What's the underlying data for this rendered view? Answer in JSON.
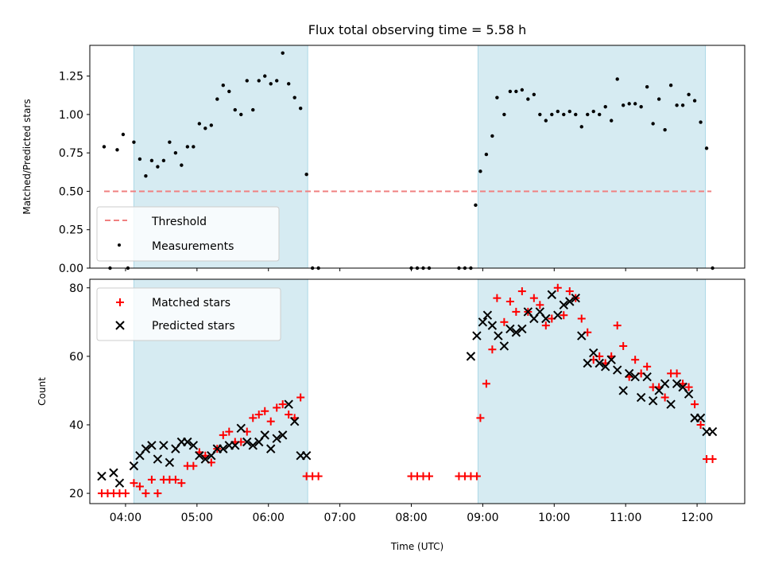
{
  "figure": {
    "title": "Flux total observing time = 5.58 h"
  },
  "chart_data": [
    {
      "type": "scatter",
      "ylabel": "Matched/Predicted stars",
      "ylim": [
        0,
        1.45
      ],
      "yticks": [
        0.0,
        0.25,
        0.5,
        0.75,
        1.0,
        1.25
      ],
      "ytick_labels": [
        "0.00",
        "0.25",
        "0.50",
        "0.75",
        "1.00",
        "1.25"
      ],
      "xlim": [
        "03:30",
        "12:40"
      ],
      "shaded_intervals": [
        [
          "04:07",
          "06:33"
        ],
        [
          "08:56",
          "12:07"
        ]
      ],
      "threshold": {
        "name": "Threshold",
        "value": 0.5,
        "x_range": [
          "03:42",
          "12:12"
        ]
      },
      "legend": {
        "position": "lower-left",
        "entries": [
          "Threshold",
          "Measurements"
        ]
      },
      "series": [
        {
          "name": "Measurements",
          "color": "#000000",
          "x": [
            "03:42",
            "03:47",
            "03:53",
            "03:58",
            "04:02",
            "04:07",
            "04:12",
            "04:17",
            "04:22",
            "04:27",
            "04:32",
            "04:37",
            "04:42",
            "04:47",
            "04:52",
            "04:57",
            "05:02",
            "05:07",
            "05:12",
            "05:17",
            "05:22",
            "05:27",
            "05:32",
            "05:37",
            "05:42",
            "05:47",
            "05:52",
            "05:57",
            "06:02",
            "06:07",
            "06:12",
            "06:17",
            "06:22",
            "06:27",
            "06:32",
            "06:37",
            "06:42",
            "08:00",
            "08:05",
            "08:10",
            "08:15",
            "08:40",
            "08:45",
            "08:50",
            "08:54",
            "08:58",
            "09:03",
            "09:08",
            "09:12",
            "09:18",
            "09:23",
            "09:28",
            "09:33",
            "09:38",
            "09:43",
            "09:48",
            "09:53",
            "09:58",
            "10:03",
            "10:08",
            "10:13",
            "10:18",
            "10:23",
            "10:28",
            "10:33",
            "10:38",
            "10:43",
            "10:48",
            "10:53",
            "10:58",
            "11:03",
            "11:08",
            "11:13",
            "11:18",
            "11:23",
            "11:28",
            "11:33",
            "11:38",
            "11:43",
            "11:48",
            "11:53",
            "11:58",
            "12:03",
            "12:08",
            "12:13"
          ],
          "y": [
            0.79,
            0.0,
            0.77,
            0.87,
            0.0,
            0.82,
            0.71,
            0.6,
            0.7,
            0.66,
            0.7,
            0.82,
            0.75,
            0.67,
            0.79,
            0.79,
            0.94,
            0.91,
            0.93,
            1.1,
            1.19,
            1.15,
            1.03,
            1.0,
            1.22,
            1.03,
            1.22,
            1.25,
            1.2,
            1.22,
            1.4,
            1.2,
            1.11,
            1.04,
            0.61,
            0.0,
            0.0,
            0.0,
            0.0,
            0.0,
            0.0,
            0.0,
            0.0,
            0.0,
            0.41,
            0.63,
            0.74,
            0.86,
            1.11,
            1.0,
            1.15,
            1.15,
            1.16,
            1.1,
            1.13,
            1.0,
            0.96,
            1.0,
            1.02,
            1.0,
            1.02,
            1.0,
            0.92,
            1.0,
            1.02,
            1.0,
            1.05,
            0.96,
            1.23,
            1.06,
            1.07,
            1.07,
            1.05,
            1.18,
            0.94,
            1.1,
            0.9,
            1.19,
            1.06,
            1.06,
            1.13,
            1.09,
            0.95,
            0.78,
            0.0
          ]
        }
      ]
    },
    {
      "type": "scatter",
      "xlabel": "Time (UTC)",
      "ylabel": "Count",
      "ylim": [
        17,
        82.5
      ],
      "yticks": [
        20,
        40,
        60,
        80
      ],
      "ytick_labels": [
        "20",
        "40",
        "60",
        "80"
      ],
      "xlim": [
        "03:30",
        "12:40"
      ],
      "xticks": [
        "04:00",
        "05:00",
        "06:00",
        "07:00",
        "08:00",
        "09:00",
        "10:00",
        "11:00",
        "12:00"
      ],
      "xtick_labels": [
        "04:00",
        "05:00",
        "06:00",
        "07:00",
        "08:00",
        "09:00",
        "10:00",
        "11:00",
        "12:00"
      ],
      "shaded_intervals": [
        [
          "04:07",
          "06:33"
        ],
        [
          "08:56",
          "12:07"
        ]
      ],
      "legend": {
        "position": "top-left",
        "entries": [
          "Matched stars",
          "Predicted stars"
        ]
      },
      "series": [
        {
          "name": "Matched stars",
          "marker": "+",
          "color": "#ff0000",
          "x": [
            "03:40",
            "03:45",
            "03:50",
            "03:55",
            "04:00",
            "04:07",
            "04:12",
            "04:17",
            "04:22",
            "04:27",
            "04:32",
            "04:37",
            "04:42",
            "04:47",
            "04:52",
            "04:57",
            "05:02",
            "05:07",
            "05:12",
            "05:17",
            "05:22",
            "05:27",
            "05:32",
            "05:37",
            "05:42",
            "05:47",
            "05:52",
            "05:57",
            "06:02",
            "06:07",
            "06:12",
            "06:17",
            "06:22",
            "06:27",
            "06:32",
            "06:37",
            "06:42",
            "08:00",
            "08:05",
            "08:10",
            "08:15",
            "08:40",
            "08:45",
            "08:50",
            "08:55",
            "08:58",
            "09:03",
            "09:08",
            "09:12",
            "09:18",
            "09:23",
            "09:28",
            "09:33",
            "09:38",
            "09:43",
            "09:48",
            "09:53",
            "09:58",
            "10:03",
            "10:08",
            "10:13",
            "10:18",
            "10:23",
            "10:28",
            "10:33",
            "10:38",
            "10:43",
            "10:48",
            "10:53",
            "10:58",
            "11:03",
            "11:08",
            "11:13",
            "11:18",
            "11:23",
            "11:28",
            "11:33",
            "11:38",
            "11:43",
            "11:48",
            "11:53",
            "11:58",
            "12:03",
            "12:08",
            "12:13"
          ],
          "y": [
            20,
            20,
            20,
            20,
            20,
            23,
            22,
            20,
            24,
            20,
            24,
            24,
            24,
            23,
            28,
            28,
            32,
            31,
            29,
            33,
            37,
            38,
            35,
            35,
            38,
            42,
            43,
            44,
            41,
            45,
            46,
            43,
            42,
            48,
            25,
            25,
            25,
            25,
            25,
            25,
            25,
            25,
            25,
            25,
            25,
            42,
            52,
            62,
            77,
            70,
            76,
            73,
            79,
            73,
            77,
            75,
            69,
            71,
            80,
            72,
            79,
            77,
            71,
            67,
            59,
            60,
            58,
            60,
            69,
            63,
            54,
            59,
            55,
            57,
            51,
            51,
            48,
            55,
            55,
            52,
            51,
            46,
            40,
            30,
            30
          ]
        },
        {
          "name": "Predicted stars",
          "marker": "x",
          "color": "#000000",
          "x": [
            "03:40",
            "03:50",
            "03:55",
            "04:07",
            "04:12",
            "04:17",
            "04:22",
            "04:27",
            "04:32",
            "04:37",
            "04:42",
            "04:47",
            "04:52",
            "04:57",
            "05:02",
            "05:07",
            "05:12",
            "05:17",
            "05:22",
            "05:27",
            "05:32",
            "05:37",
            "05:42",
            "05:47",
            "05:52",
            "05:57",
            "06:02",
            "06:07",
            "06:12",
            "06:17",
            "06:22",
            "06:27",
            "06:32",
            "08:50",
            "08:55",
            "09:00",
            "09:04",
            "09:08",
            "09:13",
            "09:18",
            "09:23",
            "09:28",
            "09:33",
            "09:38",
            "09:43",
            "09:48",
            "09:53",
            "09:58",
            "10:03",
            "10:08",
            "10:13",
            "10:18",
            "10:23",
            "10:28",
            "10:33",
            "10:38",
            "10:43",
            "10:48",
            "10:53",
            "10:58",
            "11:03",
            "11:08",
            "11:13",
            "11:18",
            "11:23",
            "11:28",
            "11:33",
            "11:38",
            "11:43",
            "11:48",
            "11:53",
            "11:58",
            "12:03",
            "12:08",
            "12:13"
          ],
          "y": [
            25,
            26,
            23,
            28,
            31,
            33,
            34,
            30,
            34,
            29,
            33,
            35,
            35,
            34,
            31,
            30,
            31,
            33,
            33,
            34,
            34,
            39,
            35,
            34,
            35,
            37,
            33,
            36,
            37,
            46,
            41,
            31,
            31,
            60,
            66,
            70,
            72,
            69,
            66,
            63,
            68,
            67,
            68,
            73,
            71,
            73,
            71,
            78,
            72,
            75,
            76,
            77,
            66,
            58,
            61,
            58,
            57,
            59,
            56,
            50,
            55,
            54,
            48,
            54,
            47,
            50,
            52,
            46,
            52,
            51,
            49,
            42,
            42,
            38,
            38
          ]
        }
      ]
    }
  ]
}
